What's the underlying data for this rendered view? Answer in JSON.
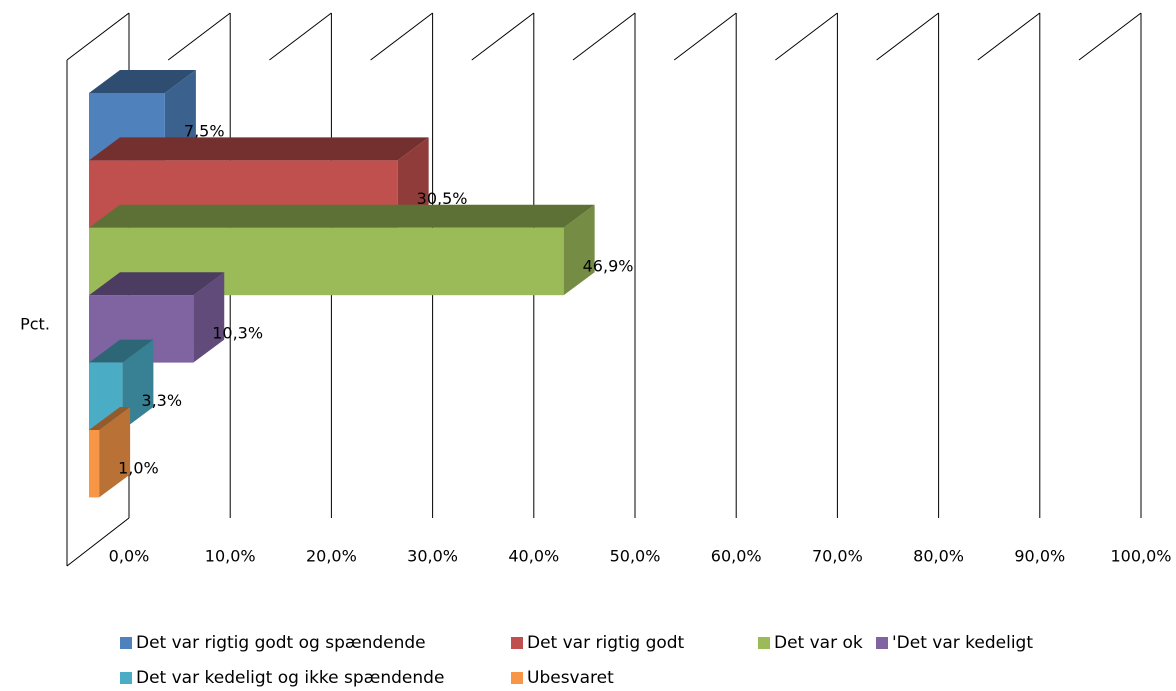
{
  "chart_data": {
    "type": "bar3d",
    "orientation": "horizontal",
    "categories": [
      "Pct."
    ],
    "series": [
      {
        "name": "Det var rigtig godt og spændende",
        "color": "#4f81bd",
        "values": [
          7.5
        ],
        "value_labels": [
          "7,5%"
        ]
      },
      {
        "name": "Det var rigtig godt",
        "color": "#c0504d",
        "values": [
          30.5
        ],
        "value_labels": [
          "30,5%"
        ]
      },
      {
        "name": "Det var ok",
        "color": "#9bbb59",
        "values": [
          46.9
        ],
        "value_labels": [
          "46,9%"
        ]
      },
      {
        "name": "'Det var kedeligt",
        "color": "#8064a2",
        "values": [
          10.3
        ],
        "value_labels": [
          "10,3%"
        ]
      },
      {
        "name": "Det var kedeligt og ikke spændende",
        "color": "#4bacc6",
        "values": [
          3.3
        ],
        "value_labels": [
          "3,3%"
        ]
      },
      {
        "name": "Ubesvaret",
        "color": "#f79646",
        "values": [
          1.0
        ],
        "value_labels": [
          "1,0%"
        ]
      }
    ],
    "xlim": [
      0,
      100
    ],
    "xticks": [
      {
        "value": 0,
        "label": "0,0%"
      },
      {
        "value": 10,
        "label": "10,0%"
      },
      {
        "value": 20,
        "label": "20,0%"
      },
      {
        "value": 30,
        "label": "30,0%"
      },
      {
        "value": 40,
        "label": "40,0%"
      },
      {
        "value": 50,
        "label": "50,0%"
      },
      {
        "value": 60,
        "label": "60,0%"
      },
      {
        "value": 70,
        "label": "70,0%"
      },
      {
        "value": 80,
        "label": "80,0%"
      },
      {
        "value": 90,
        "label": "90,0%"
      },
      {
        "value": 100,
        "label": "100,0%"
      }
    ],
    "grid": true,
    "legend": "bottom"
  }
}
